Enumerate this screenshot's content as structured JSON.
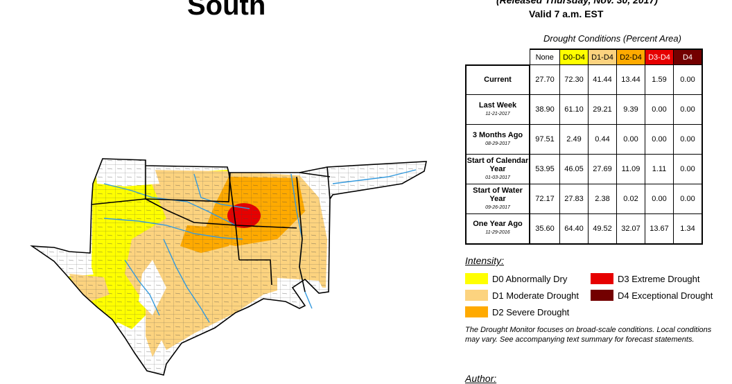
{
  "header": {
    "region": "South",
    "released": "(Released Thursday, Nov. 30, 2017)",
    "valid": "Valid 7 a.m. EST"
  },
  "table": {
    "caption": "Drought Conditions (Percent Area)",
    "columns": [
      {
        "label": "None",
        "color": "#ffffff",
        "text_color": "#000000"
      },
      {
        "label": "D0-D4",
        "color": "#ffff00",
        "text_color": "#000000"
      },
      {
        "label": "D1-D4",
        "color": "#fcd37f",
        "text_color": "#000000"
      },
      {
        "label": "D2-D4",
        "color": "#ffaa00",
        "text_color": "#000000"
      },
      {
        "label": "D3-D4",
        "color": "#e60000",
        "text_color": "#ffffff"
      },
      {
        "label": "D4",
        "color": "#730000",
        "text_color": "#ffffff"
      }
    ],
    "rows": [
      {
        "label": "Current",
        "sub": "",
        "values": [
          "27.70",
          "72.30",
          "41.44",
          "13.44",
          "1.59",
          "0.00"
        ]
      },
      {
        "label": "Last Week",
        "sub": "11-21-2017",
        "values": [
          "38.90",
          "61.10",
          "29.21",
          "9.39",
          "0.00",
          "0.00"
        ]
      },
      {
        "label": "3 Months Ago",
        "sub": "08-29-2017",
        "values": [
          "97.51",
          "2.49",
          "0.44",
          "0.00",
          "0.00",
          "0.00"
        ]
      },
      {
        "label": "Start of Calendar Year",
        "sub": "01-03-2017",
        "values": [
          "53.95",
          "46.05",
          "27.69",
          "11.09",
          "1.11",
          "0.00"
        ]
      },
      {
        "label": "Start of Water Year",
        "sub": "09-26-2017",
        "values": [
          "72.17",
          "27.83",
          "2.38",
          "0.02",
          "0.00",
          "0.00"
        ]
      },
      {
        "label": "One Year Ago",
        "sub": "11-29-2016",
        "values": [
          "35.60",
          "64.40",
          "49.52",
          "32.07",
          "13.67",
          "1.34"
        ]
      }
    ]
  },
  "legend": {
    "title": "Intensity:",
    "items": [
      {
        "label": "D0 Abnormally Dry",
        "color": "#ffff00"
      },
      {
        "label": "D1 Moderate Drought",
        "color": "#fcd37f"
      },
      {
        "label": "D2 Severe Drought",
        "color": "#ffaa00"
      },
      {
        "label": "D3 Extreme Drought",
        "color": "#e60000"
      },
      {
        "label": "D4 Exceptional Drought",
        "color": "#730000"
      }
    ]
  },
  "note": "The Drought Monitor focuses on broad-scale conditions. Local conditions may vary. See accompanying text summary for forecast statements.",
  "author_label": "Author:",
  "map": {
    "states": [
      "Texas",
      "Oklahoma",
      "Kansas",
      "Arkansas",
      "Louisiana",
      "Mississippi",
      "Tennessee"
    ],
    "river_color": "#3399dd"
  }
}
